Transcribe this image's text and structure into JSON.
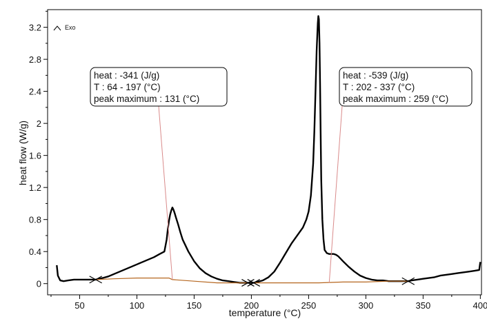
{
  "chart_data": {
    "type": "line",
    "title": "",
    "xlabel": "temperature (°C)",
    "ylabel": "heat flow (W/g)",
    "xlim": [
      22,
      401
    ],
    "ylim": [
      -0.14,
      3.42
    ],
    "x_ticks": [
      50,
      100,
      150,
      200,
      250,
      300,
      350,
      400
    ],
    "y_ticks": [
      0,
      0.4,
      0.8,
      1.2,
      1.6,
      2,
      2.4,
      2.8,
      3.2
    ],
    "x_tick_labels": [
      "50",
      "100",
      "150",
      "200",
      "250",
      "300",
      "350",
      "400"
    ],
    "y_tick_labels": [
      "0",
      "0.4",
      "0.8",
      "1.2",
      "1.6",
      "2",
      "2.4",
      "2.8",
      "3.2"
    ],
    "exo_label": "Exo",
    "grid": false,
    "series": [
      {
        "color": "#000000",
        "x": [
          30,
          31,
          33,
          36,
          40,
          45,
          50,
          55,
          60,
          64,
          70,
          75,
          80,
          85,
          90,
          95,
          100,
          105,
          110,
          115,
          120,
          124,
          126,
          127,
          128,
          129,
          130,
          131,
          132,
          133,
          134,
          136,
          138,
          140,
          145,
          150,
          155,
          160,
          165,
          170,
          175,
          180,
          185,
          190,
          195,
          197,
          200,
          202,
          205,
          210,
          215,
          220,
          225,
          230,
          235,
          240,
          245,
          248,
          250,
          252,
          254,
          255,
          256,
          257,
          258,
          258.5,
          259,
          259.5,
          260,
          260.5,
          261,
          262,
          263,
          264,
          266,
          268,
          270,
          272,
          274,
          276,
          278,
          280,
          285,
          290,
          295,
          300,
          305,
          310,
          315,
          320,
          325,
          330,
          335,
          337,
          340,
          345,
          350,
          355,
          360,
          365,
          370,
          375,
          380,
          385,
          390,
          395,
          399,
          400
        ],
        "y": [
          0.23,
          0.1,
          0.04,
          0.03,
          0.04,
          0.05,
          0.05,
          0.05,
          0.05,
          0.05,
          0.07,
          0.09,
          0.12,
          0.15,
          0.18,
          0.21,
          0.24,
          0.27,
          0.3,
          0.33,
          0.37,
          0.4,
          0.55,
          0.68,
          0.78,
          0.86,
          0.91,
          0.95,
          0.92,
          0.88,
          0.83,
          0.74,
          0.64,
          0.55,
          0.4,
          0.28,
          0.19,
          0.13,
          0.09,
          0.06,
          0.04,
          0.03,
          0.02,
          0.01,
          0.01,
          0.01,
          0.01,
          0.01,
          0.02,
          0.04,
          0.08,
          0.15,
          0.26,
          0.38,
          0.5,
          0.6,
          0.7,
          0.8,
          0.9,
          1.1,
          1.5,
          1.9,
          2.4,
          2.9,
          3.25,
          3.34,
          3.3,
          3.0,
          2.5,
          1.9,
          1.3,
          0.8,
          0.55,
          0.42,
          0.38,
          0.37,
          0.37,
          0.37,
          0.36,
          0.34,
          0.31,
          0.28,
          0.21,
          0.15,
          0.1,
          0.07,
          0.05,
          0.04,
          0.04,
          0.03,
          0.03,
          0.03,
          0.03,
          0.03,
          0.04,
          0.05,
          0.06,
          0.07,
          0.08,
          0.1,
          0.11,
          0.12,
          0.13,
          0.14,
          0.15,
          0.16,
          0.17,
          0.27
        ]
      },
      {
        "color": "#b5651d",
        "x": [
          64,
          80,
          100,
          120,
          128,
          131,
          150,
          170,
          197
        ],
        "y": [
          0.05,
          0.06,
          0.07,
          0.07,
          0.07,
          0.05,
          0.03,
          0.01,
          0.01
        ]
      },
      {
        "color": "#b5651d",
        "x": [
          202,
          220,
          240,
          259,
          280,
          300,
          320,
          337
        ],
        "y": [
          0.01,
          0.01,
          0.01,
          0.01,
          0.02,
          0.02,
          0.03,
          0.03
        ]
      }
    ],
    "integration_limits": [
      {
        "x": 64,
        "y": 0.05
      },
      {
        "x": 197,
        "y": 0.01
      },
      {
        "x": 202,
        "y": 0.01
      },
      {
        "x": 337,
        "y": 0.03
      }
    ],
    "annotations": [
      {
        "lines": [
          "heat :  -341 (J/g)",
          "T : 64 - 197 (°C)",
          "peak maximum :  131 (°C)"
        ],
        "leader_to": {
          "x": 131,
          "y": 0.05
        }
      },
      {
        "lines": [
          "heat :  -539 (J/g)",
          "T : 202 - 337 (°C)",
          "peak maximum :  259 (°C)"
        ],
        "leader_to": {
          "x": 268,
          "y": 0.01
        }
      }
    ]
  }
}
